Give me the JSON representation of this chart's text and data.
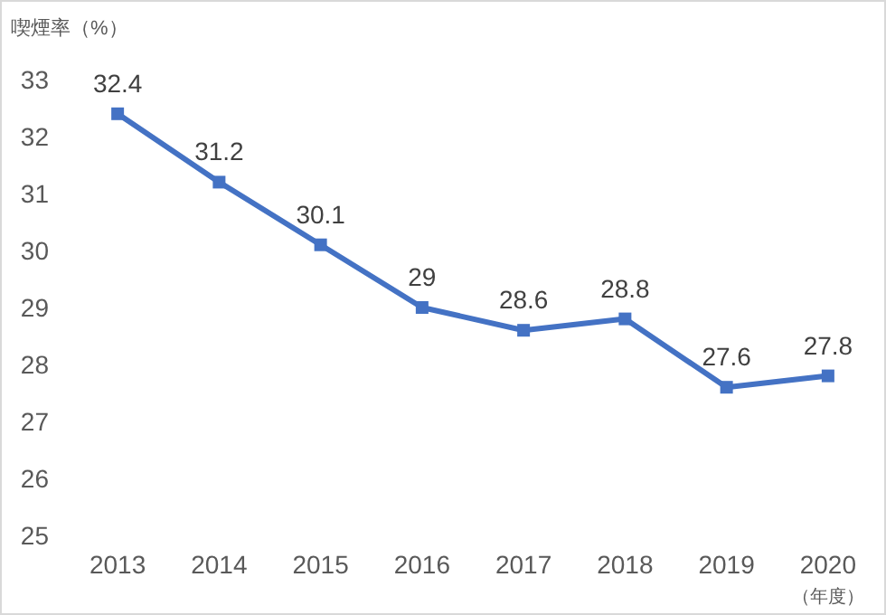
{
  "chart_data": {
    "type": "line",
    "ylabel": "喫煙率（%）",
    "xlabel": "（年度）",
    "categories": [
      "2013",
      "2014",
      "2015",
      "2016",
      "2017",
      "2018",
      "2019",
      "2020"
    ],
    "values": [
      32.4,
      31.2,
      30.1,
      29,
      28.6,
      28.8,
      27.6,
      27.8
    ],
    "color": "#4472c4",
    "marker": "square",
    "data_labels": true,
    "ylim": [
      25,
      33
    ],
    "yticks": [
      25,
      26,
      27,
      28,
      29,
      30,
      31,
      32,
      33
    ]
  }
}
